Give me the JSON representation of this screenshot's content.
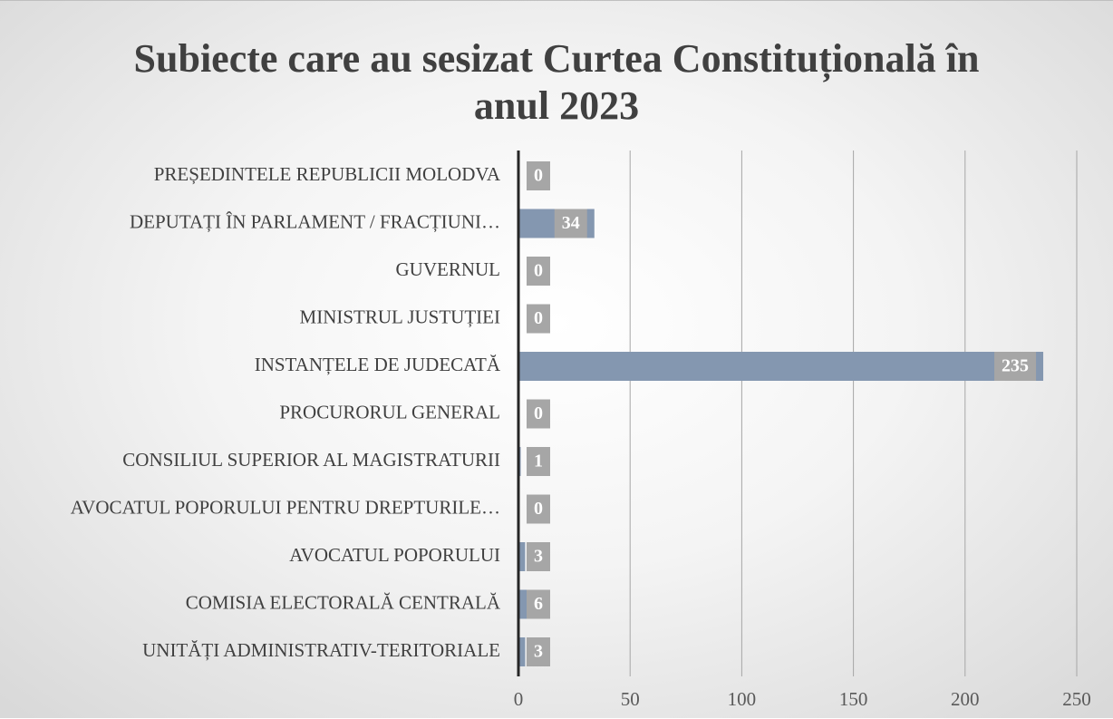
{
  "chart_data": {
    "type": "barh",
    "title": "Subiecte care au sesizat Curtea Constituțională în anul 2023",
    "categories": [
      "PREȘEDINTELE REPUBLICII MOLODVA",
      "DEPUTAȚI ÎN PARLAMENT / FRACȚIUNI…",
      "GUVERNUL",
      "MINISTRUL JUSTUȚIEI",
      "INSTANȚELE DE JUDECATĂ",
      "PROCURORUL GENERAL",
      "CONSILIUL SUPERIOR AL MAGISTRATURII",
      "AVOCATUL POPORULUI PENTRU DREPTURILE…",
      "AVOCATUL POPORULUI",
      "COMISIA ELECTORALĂ CENTRALĂ",
      "UNITĂȚI ADMINISTRATIV-TERITORIALE"
    ],
    "values": [
      0,
      34,
      0,
      0,
      235,
      0,
      1,
      0,
      3,
      6,
      3
    ],
    "color": "#8497b0",
    "xlim": [
      0,
      250
    ],
    "xticks": [
      0,
      50,
      100,
      150,
      200,
      250
    ],
    "grid": true
  }
}
